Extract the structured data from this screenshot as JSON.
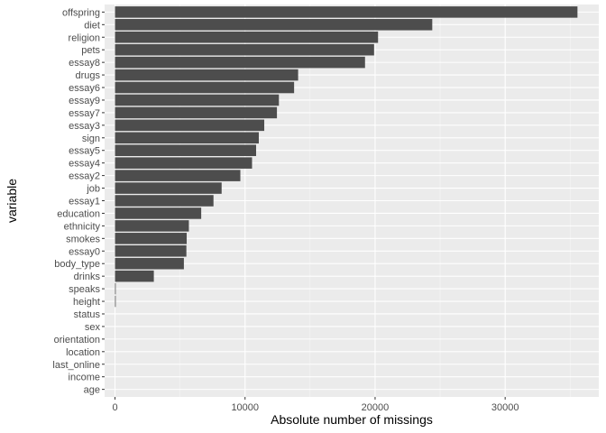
{
  "chart_data": {
    "type": "bar",
    "orientation": "horizontal",
    "title": "",
    "xlabel": "Absolute number of missings",
    "ylabel": "variable",
    "xlim": [
      -800,
      37200
    ],
    "xticks": [
      0,
      10000,
      20000,
      30000
    ],
    "xtick_labels": [
      "0",
      "10000",
      "20000",
      "30000"
    ],
    "grid": true,
    "legend": "none",
    "colors": {
      "panel_background": "#ebebeb",
      "grid_major": "#ffffff",
      "grid_minor": "#f5f5f5",
      "bar_fill": "#4d4d4d",
      "tick_text": "#4d4d4d",
      "tick_mark": "#333333"
    },
    "categories": [
      "offspring",
      "diet",
      "religion",
      "pets",
      "essay8",
      "drugs",
      "essay6",
      "essay9",
      "essay7",
      "essay3",
      "sign",
      "essay5",
      "essay4",
      "essay2",
      "job",
      "essay1",
      "education",
      "ethnicity",
      "smokes",
      "essay0",
      "body_type",
      "drinks",
      "speaks",
      "height",
      "status",
      "sex",
      "orientation",
      "location",
      "last_online",
      "income",
      "age"
    ],
    "values": [
      35561,
      24395,
      20226,
      19921,
      19225,
      14080,
      13771,
      12603,
      12451,
      11476,
      11056,
      10850,
      10537,
      9638,
      8198,
      7572,
      6628,
      5680,
      5512,
      5488,
      5296,
      2985,
      50,
      3,
      0,
      0,
      0,
      0,
      0,
      0,
      0
    ]
  }
}
